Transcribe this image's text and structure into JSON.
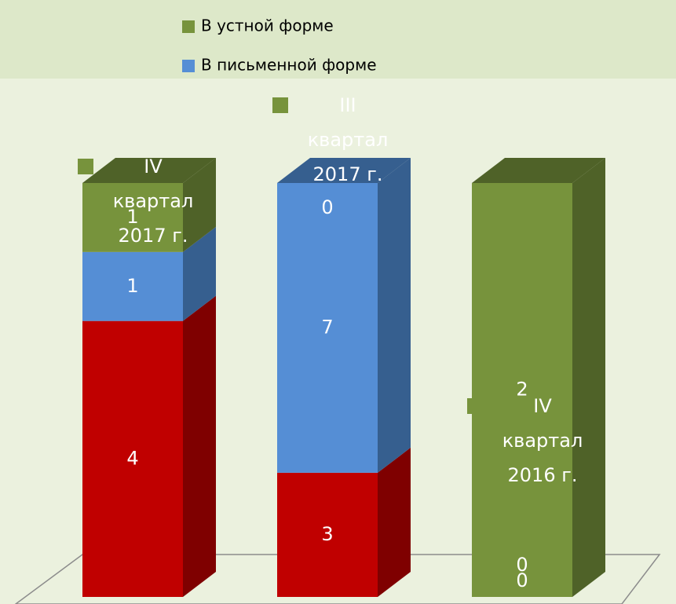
{
  "chart_data": {
    "type": "bar",
    "stacking": "percent",
    "categories": [
      "IV квартал 2017 г.",
      "III квартал 2017 г.",
      "IV квартал 2016 г."
    ],
    "series": [
      {
        "name": null,
        "color": "#c00000",
        "side": "#7f0000",
        "values": [
          4,
          3,
          0
        ]
      },
      {
        "name": "В письменной форме",
        "color": "#558ed5",
        "side": "#365f8f",
        "values": [
          1,
          7,
          0
        ]
      },
      {
        "name": "В устной форме",
        "color": "#77933c",
        "side": "#4f6228",
        "values": [
          1,
          0,
          2
        ]
      }
    ]
  }
}
